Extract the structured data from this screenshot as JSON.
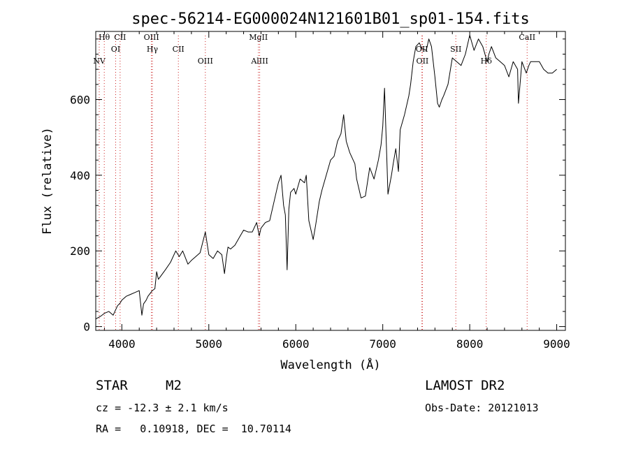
{
  "chart_data": {
    "type": "line",
    "title": "spec-56214-EG000024N121601B01_sp01-154.fits",
    "xlabel": "Wavelength (Å)",
    "ylabel": "Flux (relative)",
    "xlim": [
      3700,
      9100
    ],
    "ylim": [
      -10,
      780
    ],
    "xticks": [
      4000,
      5000,
      6000,
      7000,
      8000,
      9000
    ],
    "yticks": [
      0,
      200,
      400,
      600
    ],
    "grid": false,
    "series": [
      {
        "x": [
          3700,
          3760,
          3800,
          3850,
          3900,
          3950,
          3980,
          4000,
          4050,
          4100,
          4150,
          4200,
          4230,
          4250,
          4280,
          4300,
          4350,
          4380,
          4400,
          4420,
          4500,
          4560,
          4600,
          4620,
          4660,
          4700,
          4760,
          4800,
          4850,
          4900,
          4960,
          5000,
          5050,
          5100,
          5150,
          5180,
          5200,
          5220,
          5250,
          5300,
          5350,
          5400,
          5450,
          5500,
          5550,
          5580,
          5600,
          5650,
          5700,
          5750,
          5800,
          5830,
          5860,
          5880,
          5900,
          5920,
          5940,
          5980,
          6000,
          6050,
          6100,
          6120,
          6150,
          6200,
          6230,
          6270,
          6300,
          6350,
          6400,
          6440,
          6480,
          6520,
          6550,
          6580,
          6620,
          6680,
          6700,
          6750,
          6800,
          6850,
          6900,
          6950,
          6980,
          7000,
          7020,
          7050,
          7060,
          7100,
          7120,
          7150,
          7180,
          7200,
          7250,
          7300,
          7320,
          7350,
          7380,
          7420,
          7450,
          7500,
          7530,
          7560,
          7600,
          7630,
          7650,
          7680,
          7700,
          7750,
          7800,
          7850,
          7900,
          7950,
          8000,
          8050,
          8100,
          8150,
          8200,
          8220,
          8250,
          8300,
          8350,
          8400,
          8450,
          8500,
          8550,
          8560,
          8600,
          8650,
          8680,
          8700,
          8800,
          8850,
          8900,
          8950,
          9000
        ],
        "y": [
          20,
          28,
          35,
          40,
          30,
          55,
          62,
          70,
          80,
          85,
          90,
          95,
          30,
          60,
          70,
          80,
          95,
          100,
          145,
          125,
          150,
          170,
          190,
          200,
          185,
          200,
          165,
          175,
          185,
          195,
          250,
          190,
          180,
          200,
          190,
          140,
          180,
          210,
          205,
          215,
          235,
          255,
          250,
          250,
          275,
          240,
          260,
          275,
          280,
          330,
          380,
          400,
          320,
          295,
          150,
          310,
          355,
          365,
          350,
          390,
          380,
          400,
          280,
          230,
          270,
          330,
          360,
          400,
          440,
          450,
          490,
          510,
          560,
          490,
          460,
          430,
          390,
          340,
          345,
          420,
          390,
          440,
          480,
          530,
          630,
          420,
          350,
          400,
          430,
          470,
          410,
          520,
          560,
          610,
          640,
          700,
          740,
          750,
          735,
          730,
          760,
          740,
          660,
          590,
          580,
          600,
          610,
          640,
          710,
          700,
          690,
          720,
          770,
          730,
          760,
          740,
          700,
          720,
          740,
          710,
          700,
          690,
          660,
          700,
          680,
          590,
          700,
          670,
          690,
          700,
          700,
          680,
          670,
          670,
          680
        ]
      }
    ],
    "spectral_lines": [
      {
        "name": "NV",
        "wavelength": 3740
      },
      {
        "name": "Hθ",
        "wavelength": 3798
      },
      {
        "name": "OI",
        "wavelength": 3929
      },
      {
        "name": "CII",
        "wavelength": 3980
      },
      {
        "name": "OIII",
        "wavelength": 4340
      },
      {
        "name": "Hγ",
        "wavelength": 4351
      },
      {
        "name": "CII",
        "wavelength": 4650
      },
      {
        "name": "OIII",
        "wavelength": 4960
      },
      {
        "name": "MgII",
        "wavelength": 5570
      },
      {
        "name": "AlIII",
        "wavelength": 5585
      },
      {
        "name": "OII",
        "wavelength": 7450
      },
      {
        "name": "OII",
        "wavelength": 7456
      },
      {
        "name": "SII",
        "wavelength": 7840
      },
      {
        "name": "Hδ",
        "wavelength": 8190
      },
      {
        "name": "CaII",
        "wavelength": 8660
      }
    ]
  },
  "info": {
    "class_label": "STAR",
    "subclass": "M2",
    "survey": "LAMOST DR2",
    "cz": "cz = -12.3 ± 2.1 km/s",
    "obs_date": "Obs-Date: 20121013",
    "coords": "RA =   0.10918, DEC =  10.70114"
  },
  "colors": {
    "spectrum": "#000000",
    "line_marker": "#cc2222",
    "axis": "#000000"
  }
}
